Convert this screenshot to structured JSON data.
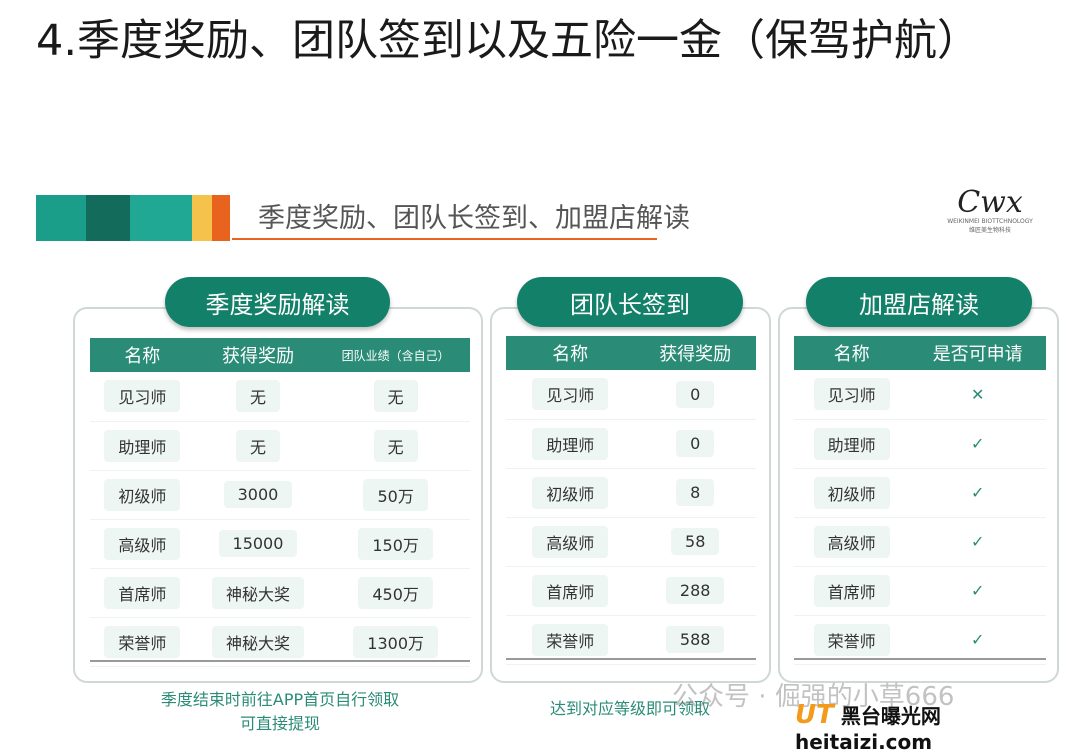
{
  "title": "4.季度奖励、团队签到以及五险一金（保驾护航）",
  "banner": {
    "text": "季度奖励、团队长签到、加盟店解读",
    "stripe_colors": [
      "#1a9e8a",
      "#136b5c",
      "#20a894",
      "#f5c24b",
      "#e8641e"
    ]
  },
  "logo": {
    "mark": "Cwx",
    "sub_en": "WEIKINMEI BIOTTCHNOLOGY",
    "sub_cn": "维匠美生物科技"
  },
  "quarterly": {
    "pill": "季度奖励解读",
    "headers": [
      "名称",
      "获得奖励",
      "团队业绩（含自己）"
    ],
    "rows": [
      [
        "见习师",
        "无",
        "无"
      ],
      [
        "助理师",
        "无",
        "无"
      ],
      [
        "初级师",
        "3000",
        "50万"
      ],
      [
        "高级师",
        "15000",
        "150万"
      ],
      [
        "首席师",
        "神秘大奖",
        "450万"
      ],
      [
        "荣誉师",
        "神秘大奖",
        "1300万"
      ]
    ],
    "note1": "季度结束时前往APP首页自行领取",
    "note2": "可直接提现"
  },
  "signin": {
    "pill": "团队长签到",
    "headers": [
      "名称",
      "获得奖励"
    ],
    "rows": [
      [
        "见习师",
        "0"
      ],
      [
        "助理师",
        "0"
      ],
      [
        "初级师",
        "8"
      ],
      [
        "高级师",
        "58"
      ],
      [
        "首席师",
        "288"
      ],
      [
        "荣誉师",
        "588"
      ]
    ],
    "note": "达到对应等级即可领取"
  },
  "franchise": {
    "pill": "加盟店解读",
    "headers": [
      "名称",
      "是否可申请"
    ],
    "rows": [
      [
        "见习师",
        "✕"
      ],
      [
        "助理师",
        "✓"
      ],
      [
        "初级师",
        "✓"
      ],
      [
        "高级师",
        "✓"
      ],
      [
        "首席师",
        "✓"
      ],
      [
        "荣誉师",
        "✓"
      ]
    ]
  },
  "watermark": {
    "text": "公众号 · 倔强的小草666",
    "site_logo": "UT",
    "site_cn": "黑台曝光网",
    "site_en": "heitaizi.com"
  },
  "colors": {
    "accent": "#138069",
    "header": "#2a8c76"
  }
}
